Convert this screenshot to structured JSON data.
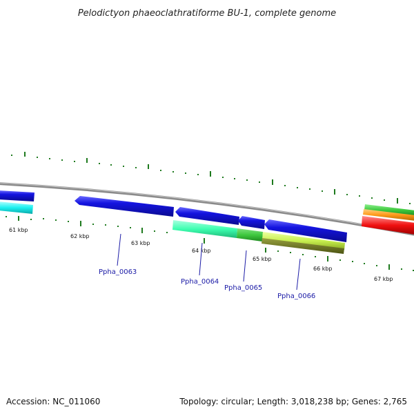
{
  "title": "Pelodictyon phaeoclathratiforme BU-1, complete genome",
  "tick_labels": [
    "61 kbp",
    "62 kbp",
    "63 kbp",
    "64 kbp",
    "65 kbp",
    "66 kbp",
    "67 kbp"
  ],
  "genes": [
    {
      "label": "Ppha_0063"
    },
    {
      "label": "Ppha_0064"
    },
    {
      "label": "Ppha_0065"
    },
    {
      "label": "Ppha_0066"
    }
  ],
  "footer": {
    "accession": "Accession: NC_011060",
    "topology": "Topology: circular; Length: 3,018,238 bp; Genes: 2,765"
  },
  "colors": {
    "backbone": "#8a8a8a",
    "tick": "#1e7a1e",
    "cds": "#1010d8",
    "teal": "#3dffb0",
    "green": "#3ec83e",
    "yellowgreen": "#c8f050",
    "olive": "#6f7a23",
    "cyan": "#1cf0f0",
    "orange": "#ff9a1a",
    "red": "#f01010",
    "label": "#1a1aa6"
  }
}
